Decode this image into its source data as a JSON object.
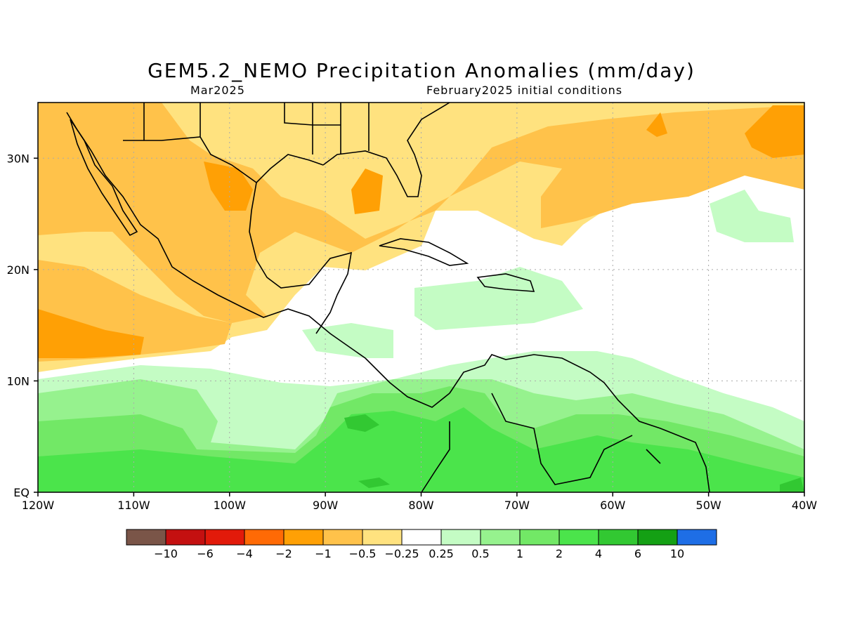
{
  "title": "GEM5.2_NEMO Precipitation Anomalies (mm/day)",
  "subtitle_left": "Mar2025",
  "subtitle_right": "February2025 initial conditions",
  "map": {
    "lon_range": [
      -120,
      -40
    ],
    "lat_range": [
      0,
      35
    ],
    "x_ticks": [
      {
        "lon": -120,
        "label": "120W"
      },
      {
        "lon": -110,
        "label": "110W"
      },
      {
        "lon": -100,
        "label": "100W"
      },
      {
        "lon": -90,
        "label": "90W"
      },
      {
        "lon": -80,
        "label": "80W"
      },
      {
        "lon": -70,
        "label": "70W"
      },
      {
        "lon": -60,
        "label": "60W"
      },
      {
        "lon": -50,
        "label": "50W"
      },
      {
        "lon": -40,
        "label": "40W"
      }
    ],
    "y_ticks": [
      {
        "lat": 0,
        "label": "EQ"
      },
      {
        "lat": 10,
        "label": "10N"
      },
      {
        "lat": 20,
        "label": "20N"
      },
      {
        "lat": 30,
        "label": "30N"
      }
    ],
    "grid": "dotted",
    "land_outline_color": "#000000"
  },
  "legend": {
    "colors": [
      "#7a5548",
      "#c41010",
      "#e21a0a",
      "#ff6a05",
      "#ffa005",
      "#ffc24a",
      "#ffe27f",
      "#ffffff",
      "#c4fcc4",
      "#96f28e",
      "#72e866",
      "#4be44b",
      "#32c832",
      "#14a014",
      "#1e6ee6"
    ],
    "labels": [
      "−10",
      "−6",
      "−4",
      "−2",
      "−1",
      "−0.5",
      "−0.25",
      "0.25",
      "0.5",
      "1",
      "2",
      "4",
      "6",
      "10"
    ]
  }
}
